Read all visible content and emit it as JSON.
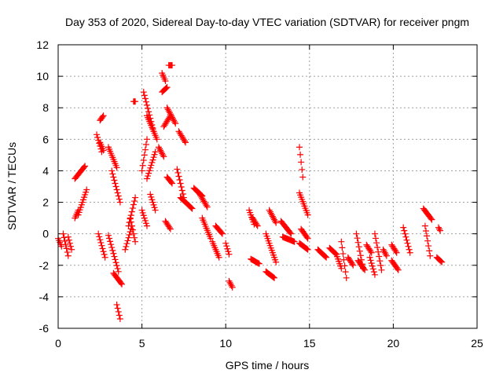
{
  "chart_data": {
    "type": "scatter",
    "title": "Day 353 of 2020, Sidereal Day-to-day VTEC variation (SDTVAR) for receiver pngm",
    "xlabel": "GPS time / hours",
    "ylabel": "SDTVAR / TECUs",
    "xlim": [
      0,
      25
    ],
    "ylim": [
      -6,
      12
    ],
    "x_ticks": [
      "0",
      "5",
      "10",
      "15",
      "20",
      "25"
    ],
    "y_ticks": [
      "-6",
      "-4",
      "-2",
      "0",
      "2",
      "4",
      "6",
      "8",
      "10",
      "12"
    ],
    "grid": true,
    "marker": "+",
    "color": "#ff0000",
    "series": [
      {
        "name": "SDTVAR",
        "segments": [
          [
            0.0,
            0.2,
            -0.3,
            -0.8
          ],
          [
            0.3,
            0.6,
            0.0,
            -1.4
          ],
          [
            0.6,
            0.8,
            -0.2,
            -1.0
          ],
          [
            1.0,
            1.2,
            1.0,
            1.5
          ],
          [
            1.0,
            1.6,
            3.5,
            4.3
          ],
          [
            1.2,
            1.7,
            1.2,
            2.8
          ],
          [
            2.3,
            2.6,
            6.3,
            5.2
          ],
          [
            2.5,
            2.7,
            5.8,
            5.3
          ],
          [
            2.5,
            2.7,
            7.2,
            7.5
          ],
          [
            2.4,
            2.8,
            0.0,
            -1.5
          ],
          [
            3.0,
            3.5,
            5.5,
            4.2
          ],
          [
            3.2,
            3.7,
            4.0,
            2.0
          ],
          [
            3.0,
            3.6,
            -0.1,
            -2.4
          ],
          [
            3.3,
            3.8,
            -2.5,
            -3.2
          ],
          [
            3.5,
            3.7,
            -4.5,
            -5.4
          ],
          [
            4.0,
            4.4,
            -1.0,
            0.5
          ],
          [
            4.2,
            4.6,
            0.5,
            2.3
          ],
          [
            4.3,
            4.6,
            1.0,
            -0.5
          ],
          [
            4.5,
            4.6,
            8.4,
            8.4
          ],
          [
            5.0,
            5.3,
            1.5,
            0.5
          ],
          [
            5.0,
            5.3,
            4.0,
            6.0
          ],
          [
            5.1,
            5.7,
            9.0,
            6.5
          ],
          [
            5.3,
            5.9,
            7.5,
            6.0
          ],
          [
            5.3,
            5.8,
            3.5,
            5.2
          ],
          [
            5.5,
            5.8,
            2.5,
            1.5
          ],
          [
            6.0,
            6.3,
            5.5,
            4.9
          ],
          [
            6.2,
            6.4,
            10.2,
            9.7
          ],
          [
            6.2,
            6.5,
            9.0,
            9.3
          ],
          [
            6.3,
            6.7,
            6.8,
            7.5
          ],
          [
            6.5,
            7.0,
            8.0,
            7.0
          ],
          [
            6.6,
            6.8,
            10.7,
            10.7
          ],
          [
            6.5,
            6.8,
            3.6,
            3.2
          ],
          [
            6.4,
            6.7,
            0.8,
            0.3
          ],
          [
            7.1,
            7.5,
            4.1,
            2.3
          ],
          [
            7.2,
            7.6,
            6.5,
            5.8
          ],
          [
            7.3,
            8.0,
            2.3,
            1.6
          ],
          [
            8.1,
            8.6,
            2.9,
            2.4
          ],
          [
            8.4,
            8.9,
            2.6,
            1.7
          ],
          [
            8.6,
            9.1,
            1.0,
            -0.3
          ],
          [
            9.2,
            9.6,
            -0.5,
            -1.5
          ],
          [
            9.4,
            9.8,
            0.5,
            0.0
          ],
          [
            10.0,
            10.2,
            -0.6,
            -1.3
          ],
          [
            10.2,
            10.4,
            -3.0,
            -3.4
          ],
          [
            11.4,
            11.7,
            1.5,
            0.6
          ],
          [
            11.6,
            11.9,
            1.0,
            0.5
          ],
          [
            11.5,
            12.0,
            -1.6,
            -1.9
          ],
          [
            12.4,
            12.9,
            -2.4,
            -2.8
          ],
          [
            12.6,
            13.0,
            1.5,
            0.7
          ],
          [
            12.4,
            13.0,
            0.0,
            -1.8
          ],
          [
            13.3,
            13.9,
            0.8,
            0.0
          ],
          [
            13.4,
            14.1,
            -0.2,
            -0.5
          ],
          [
            14.4,
            14.6,
            5.5,
            3.6
          ],
          [
            14.4,
            14.9,
            2.6,
            1.2
          ],
          [
            14.4,
            14.9,
            -0.6,
            -1.0
          ],
          [
            14.5,
            14.9,
            0.3,
            -0.3
          ],
          [
            15.5,
            16.0,
            -1.0,
            -1.5
          ],
          [
            16.2,
            16.6,
            -0.9,
            -1.3
          ],
          [
            16.6,
            16.9,
            -1.3,
            -2.2
          ],
          [
            16.9,
            17.2,
            -0.5,
            -2.8
          ],
          [
            17.3,
            17.6,
            -1.5,
            -2.0
          ],
          [
            17.8,
            18.2,
            0.0,
            -2.2
          ],
          [
            17.9,
            18.3,
            -1.7,
            -2.3
          ],
          [
            18.4,
            18.7,
            -0.7,
            -1.2
          ],
          [
            18.6,
            18.9,
            -1.5,
            -2.6
          ],
          [
            18.9,
            19.3,
            0.0,
            -2.3
          ],
          [
            19.4,
            19.6,
            -1.0,
            -1.4
          ],
          [
            19.9,
            20.2,
            -0.7,
            -1.2
          ],
          [
            19.9,
            20.3,
            -1.7,
            -2.3
          ],
          [
            20.6,
            21.0,
            0.4,
            -1.2
          ],
          [
            21.8,
            22.3,
            1.6,
            0.9
          ],
          [
            21.9,
            22.2,
            0.5,
            -1.4
          ],
          [
            22.7,
            22.8,
            0.4,
            0.2
          ],
          [
            22.6,
            22.9,
            -1.5,
            -1.8
          ]
        ]
      }
    ]
  }
}
